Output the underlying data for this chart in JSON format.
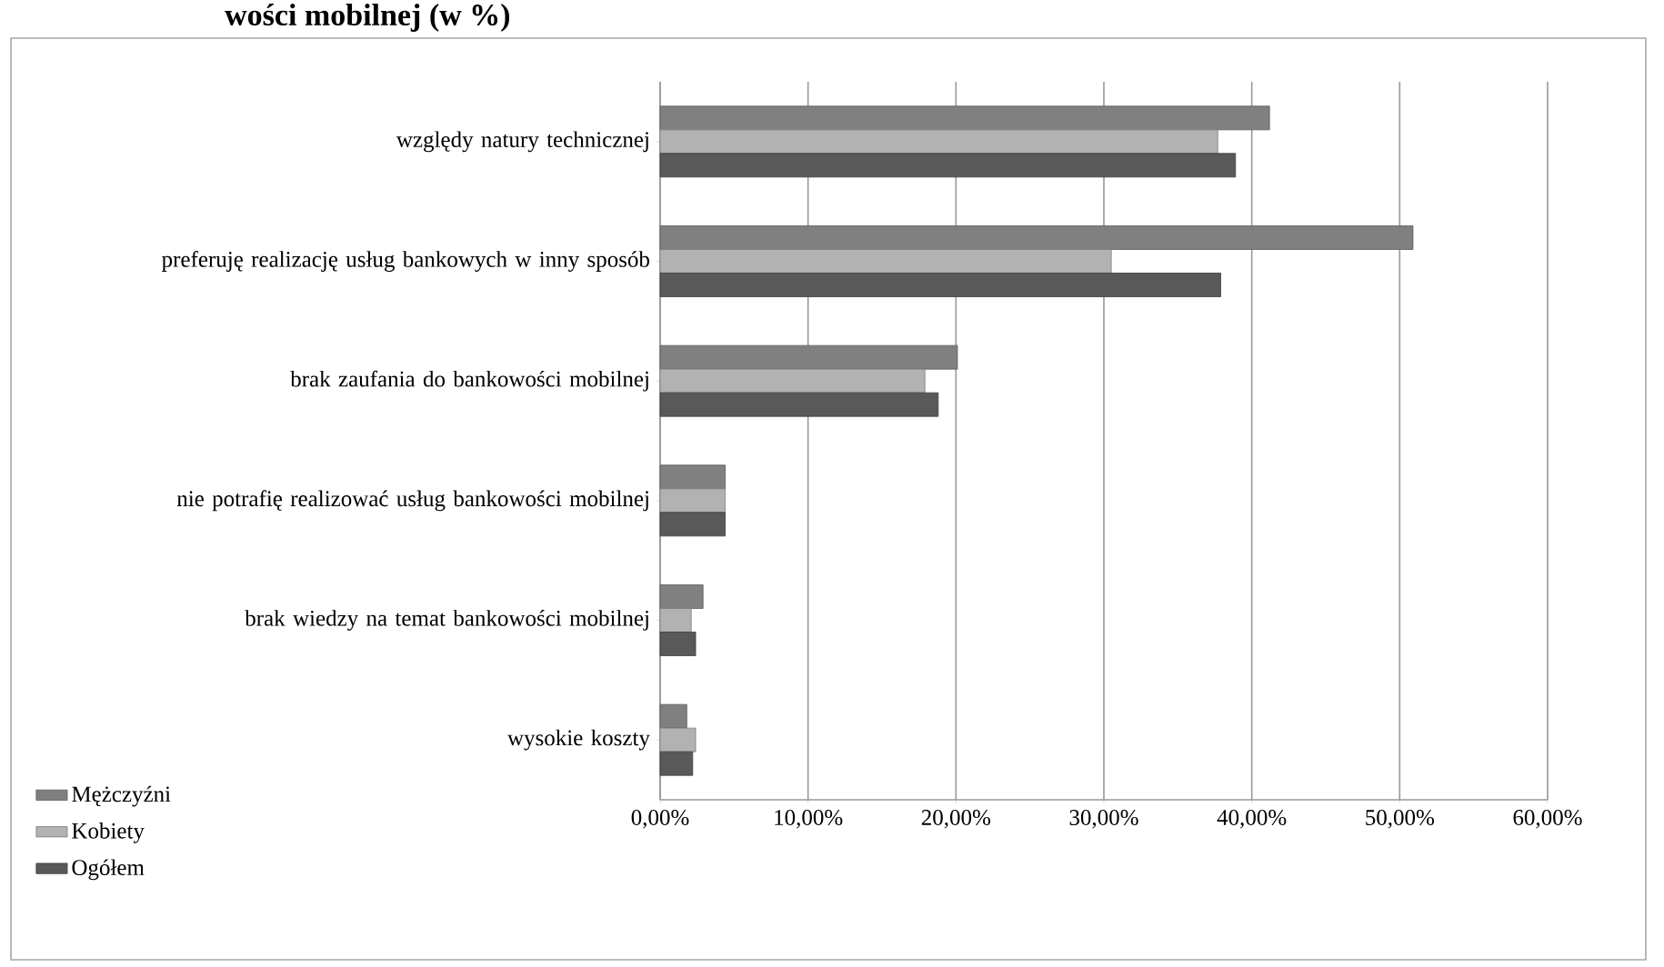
{
  "chart_data": {
    "type": "bar",
    "orientation": "horizontal",
    "title": "wości mobilnej (w %)",
    "categories": [
      "względy natury technicznej",
      "preferuję realizację usług bankowych w inny sposób",
      "brak zaufania do bankowości mobilnej",
      "nie potrafię realizować usług bankowości mobilnej",
      "brak wiedzy na temat bankowości mobilnej",
      "wysokie koszty"
    ],
    "series": [
      {
        "name": "Mężczyźni",
        "color": "#808080",
        "values": [
          41.2,
          50.9,
          20.1,
          4.4,
          2.9,
          1.8
        ]
      },
      {
        "name": "Kobiety",
        "color": "#b2b2b2",
        "values": [
          37.7,
          30.5,
          17.9,
          4.4,
          2.1,
          2.4
        ]
      },
      {
        "name": "Ogółem",
        "color": "#595959",
        "values": [
          38.9,
          37.9,
          18.8,
          4.4,
          2.4,
          2.2
        ]
      }
    ],
    "xlim": [
      0,
      60
    ],
    "xticks": [
      {
        "value": 0,
        "label": "0,00%"
      },
      {
        "value": 10,
        "label": "10,00%"
      },
      {
        "value": 20,
        "label": "20,00%"
      },
      {
        "value": 30,
        "label": "30,00%"
      },
      {
        "value": 40,
        "label": "40,00%"
      },
      {
        "value": 50,
        "label": "50,00%"
      },
      {
        "value": 60,
        "label": "60,00%"
      }
    ],
    "grid": "x",
    "legend": "bottom left"
  }
}
